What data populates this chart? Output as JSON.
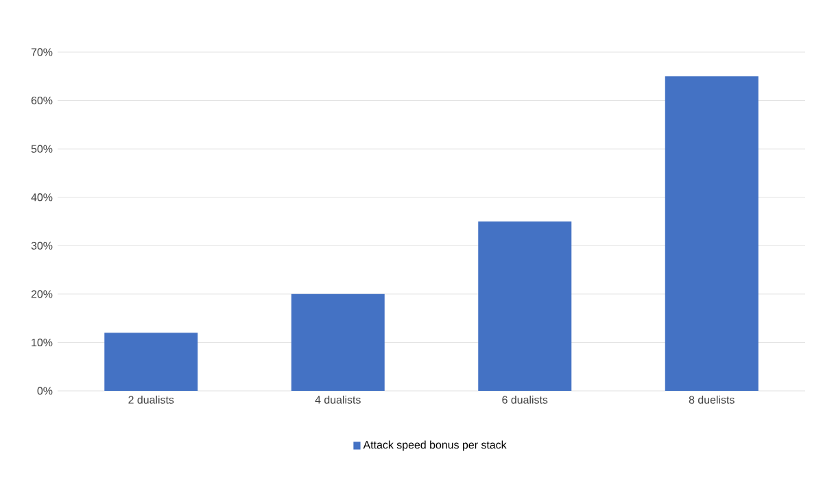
{
  "chart_data": {
    "type": "bar",
    "categories": [
      "2 dualists",
      "4 dualists",
      "6 dualists",
      "8 duelists"
    ],
    "series": [
      {
        "name": "Attack speed bonus per stack",
        "color": "#4472c4",
        "values": [
          12,
          20,
          35,
          65
        ]
      }
    ],
    "ylim": [
      0,
      70
    ],
    "yticks": [
      {
        "value": 0,
        "label": "0%"
      },
      {
        "value": 10,
        "label": "10%"
      },
      {
        "value": 20,
        "label": "20%"
      },
      {
        "value": 30,
        "label": "30%"
      },
      {
        "value": 40,
        "label": "40%"
      },
      {
        "value": 50,
        "label": "50%"
      },
      {
        "value": 60,
        "label": "60%"
      },
      {
        "value": 70,
        "label": "70%"
      }
    ],
    "grid": "y",
    "legend": "bottom"
  }
}
